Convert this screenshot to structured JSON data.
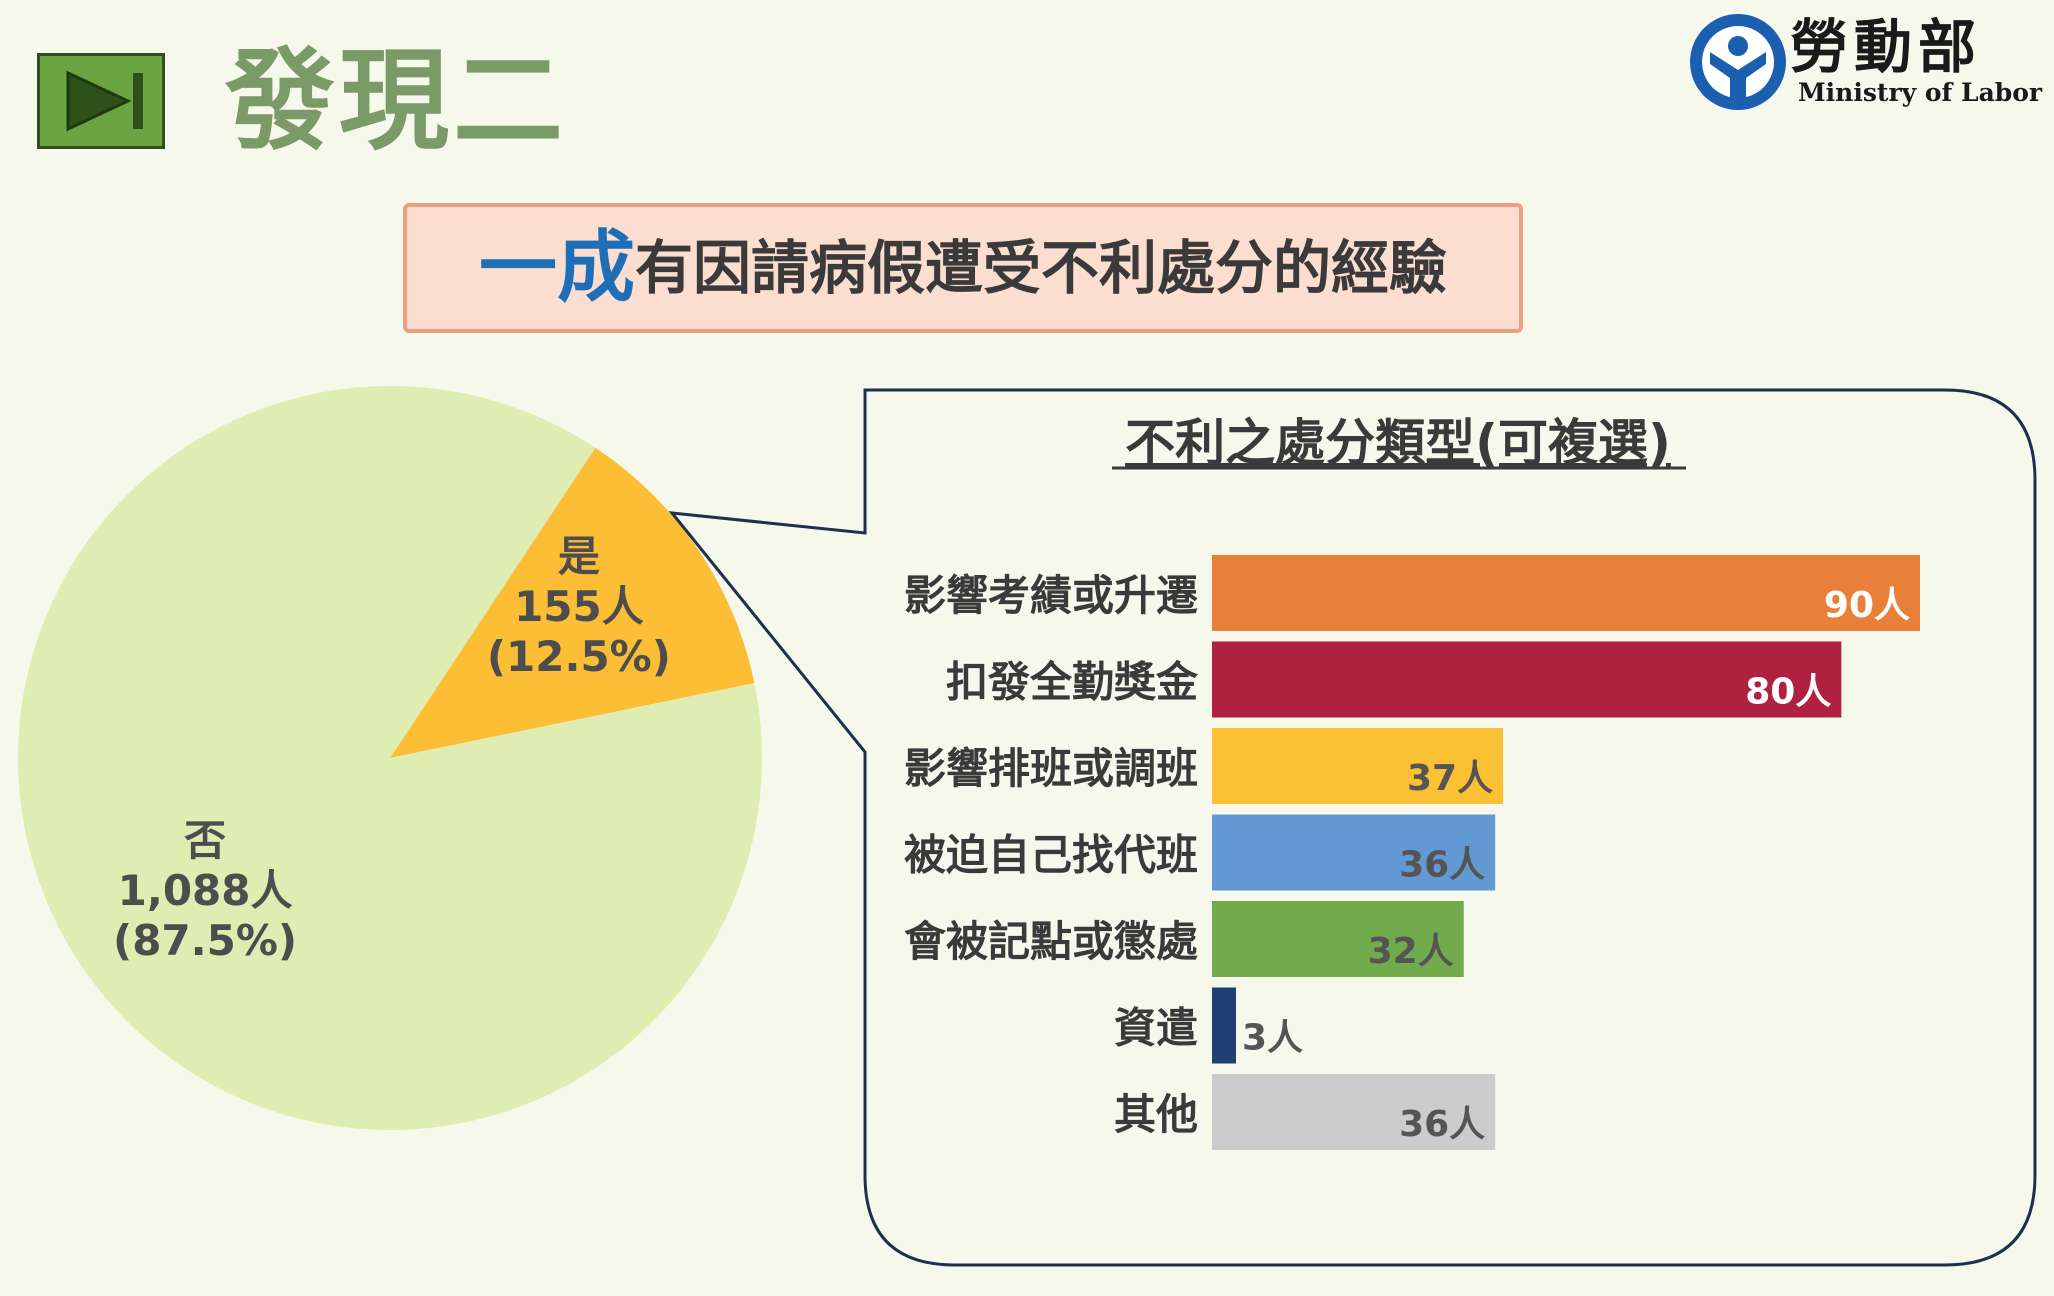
{
  "header": {
    "title": "發現二",
    "logo_cn": "勞動部",
    "logo_en": "Ministry  of  Labor"
  },
  "headline": {
    "emphasis": "一成",
    "rest": "有因請病假遭受不利處分的經驗"
  },
  "colors": {
    "pie_no": "#dfedb2",
    "pie_yes": "#fbbe35",
    "accent_blue": "#1f6fb8",
    "callout_border": "#1f2f4f"
  },
  "chart_data": [
    {
      "type": "pie",
      "slices": [
        {
          "label": "是",
          "count_label": "155人",
          "pct_label": "(12.5%)",
          "value": 155,
          "percent": 12.5,
          "color": "#fbbe35"
        },
        {
          "label": "否",
          "count_label": "1,088人",
          "pct_label": "(87.5%)",
          "value": 1088,
          "percent": 87.5,
          "color": "#dfedb2"
        }
      ]
    },
    {
      "type": "bar",
      "orientation": "horizontal",
      "title": "不利之處分類型(可複選)",
      "categories": [
        "影響考績或升遷",
        "扣發全勤獎金",
        "影響排班或調班",
        "被迫自己找代班",
        "會被記點或懲處",
        "資遣",
        "其他"
      ],
      "values": [
        90,
        80,
        37,
        36,
        32,
        3,
        36
      ],
      "value_labels": [
        "90人",
        "80人",
        "37人",
        "36人",
        "32人",
        "3人",
        "36人"
      ],
      "colors": [
        "#e8803a",
        "#b02041",
        "#fbc034",
        "#6399d3",
        "#72ab4c",
        "#223f74",
        "#cccccc"
      ],
      "label_colors": [
        "#ffffff",
        "#ffffff",
        "#555555",
        "#555555",
        "#555555",
        "#555555",
        "#555555"
      ],
      "xlim": [
        0,
        90
      ]
    }
  ]
}
